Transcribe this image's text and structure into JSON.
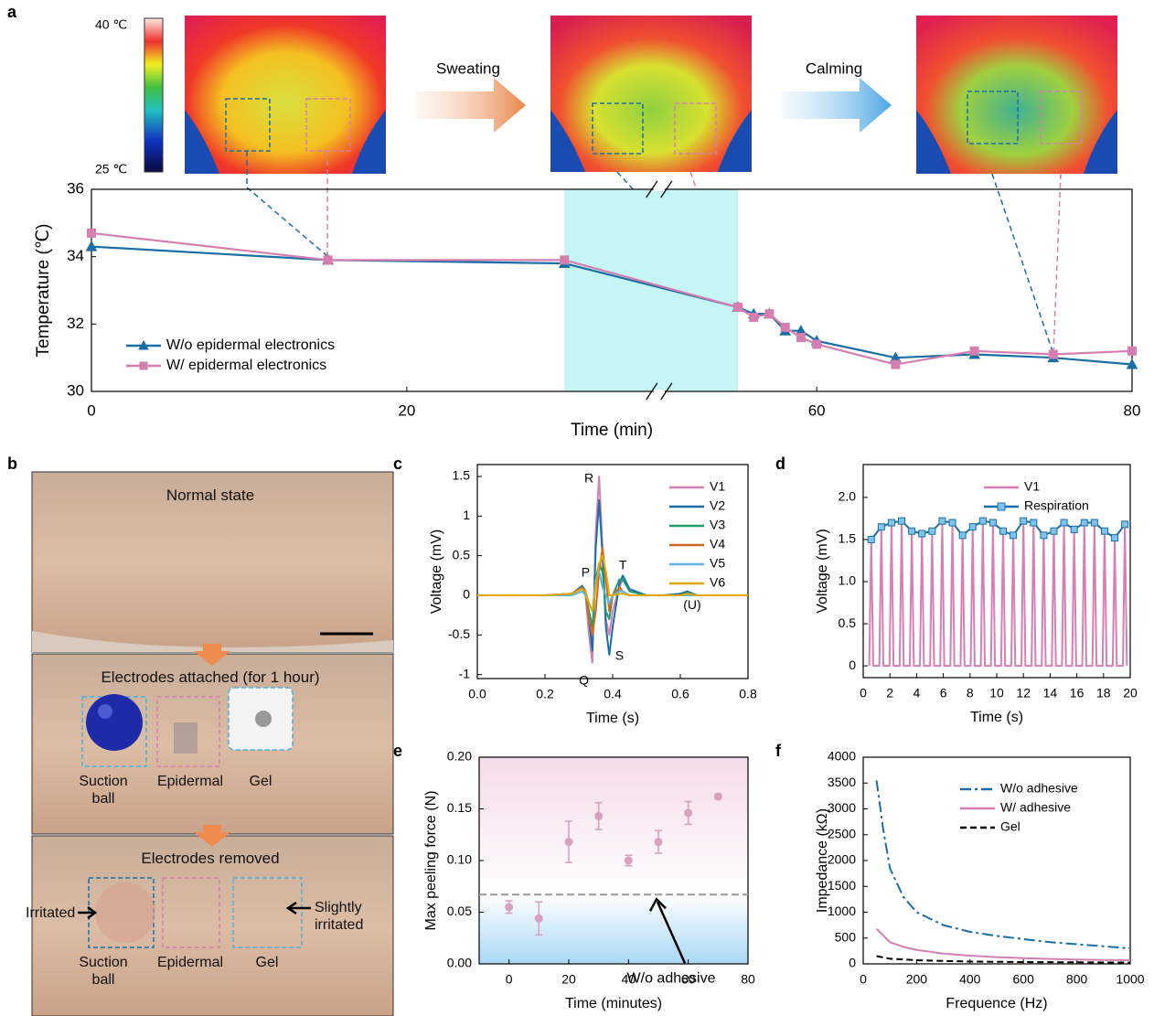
{
  "panel_labels": [
    "a",
    "b",
    "c",
    "d",
    "e",
    "f"
  ],
  "thermal": {
    "scale_max": "40 ℃",
    "scale_min": "25 ℃",
    "stages": [
      "Sweating",
      "Calming"
    ]
  },
  "photo": {
    "normal": "Normal state",
    "attached": {
      "title": "Electrodes attached (for 1 hour)",
      "electrodes": [
        "Suction ball",
        "Epidermal",
        "Gel"
      ]
    },
    "removed": {
      "title": "Electrodes removed",
      "electrodes": [
        "Suction ball",
        "Epidermal",
        "Gel"
      ],
      "notes": [
        "Irritated",
        "Slightly irritated"
      ]
    }
  },
  "chart_data": [
    {
      "type": "line",
      "x_label": "Time (min)",
      "y_label": "Temperature (℃)",
      "xlim": [
        0,
        80
      ],
      "xbreak": [
        36,
        50
      ],
      "xticks": [
        0,
        20,
        60,
        80
      ],
      "ylim": [
        30,
        36
      ],
      "yticks": [
        30,
        32,
        34,
        36
      ],
      "shaded_x": [
        30,
        55
      ],
      "shaded_color": "#c6f5f5",
      "legend": "lower left",
      "x": [
        0,
        15,
        30,
        55,
        56,
        57,
        58,
        59,
        60,
        65,
        70,
        75,
        80
      ],
      "series": [
        {
          "name": "W/o epidermal electronics",
          "color": "#1a6ea5",
          "marker": "triangle",
          "values": [
            34.3,
            33.9,
            33.8,
            32.5,
            32.3,
            32.3,
            31.8,
            31.8,
            31.5,
            31.0,
            31.1,
            31.0,
            30.8
          ]
        },
        {
          "name": "W/ epidermal electronics",
          "color": "#d47fb0",
          "marker": "square",
          "values": [
            34.7,
            33.9,
            33.9,
            32.5,
            32.2,
            32.3,
            31.9,
            31.6,
            31.4,
            30.8,
            31.2,
            31.1,
            31.2
          ]
        }
      ]
    },
    {
      "type": "line",
      "x_label": "Time (s)",
      "y_label": "Voltage (mV)",
      "xlim": [
        0,
        0.8
      ],
      "xticks": [
        {
          "value": 0,
          "label": "0.0"
        },
        0.2,
        0.4,
        0.6,
        0.8
      ],
      "ylim": [
        -1.05,
        1.65
      ],
      "yticks": [
        -1,
        -0.5,
        0,
        0.5,
        1,
        1.5
      ],
      "legend": "upper right",
      "x": [
        0,
        0.1,
        0.2,
        0.28,
        0.31,
        0.32,
        0.33,
        0.34,
        0.35,
        0.36,
        0.37,
        0.38,
        0.39,
        0.4,
        0.42,
        0.43,
        0.45,
        0.5,
        0.55,
        0.6,
        0.62,
        0.65,
        0.7,
        0.8
      ],
      "series": [
        {
          "name": "V1",
          "color": "#d67fb3",
          "values": [
            0,
            0,
            0,
            0.02,
            0.1,
            0,
            -0.5,
            -0.85,
            0.8,
            1.5,
            0.6,
            -0.3,
            -0.5,
            -0.2,
            0.1,
            0.2,
            0.05,
            0,
            0,
            0.02,
            0.05,
            0,
            0,
            0
          ]
        },
        {
          "name": "V2",
          "color": "#1b6fa8",
          "values": [
            0,
            0,
            0,
            0.02,
            0.12,
            0.05,
            -0.3,
            -0.7,
            0.6,
            1.2,
            0.5,
            -0.4,
            -0.75,
            -0.4,
            0.15,
            0.25,
            0.08,
            0,
            0,
            0.02,
            0.05,
            0,
            0,
            0
          ]
        },
        {
          "name": "V3",
          "color": "#1f9e6e",
          "values": [
            0,
            0,
            0,
            0.02,
            0.1,
            0,
            -0.2,
            -0.4,
            0.2,
            0.4,
            0.3,
            -0.2,
            -0.3,
            0,
            0.2,
            0.2,
            0.05,
            0,
            0,
            0,
            0.03,
            0,
            0,
            0
          ]
        },
        {
          "name": "V4",
          "color": "#d2691e",
          "values": [
            0,
            0,
            0,
            0.02,
            0.1,
            0,
            -0.3,
            -0.5,
            -0.2,
            0.3,
            0.6,
            0.2,
            -0.2,
            0,
            0.1,
            0.05,
            0,
            0,
            0,
            0,
            0,
            0,
            0,
            0
          ]
        },
        {
          "name": "V5",
          "color": "#5ab4e5",
          "values": [
            0,
            0,
            0,
            0,
            0.05,
            0,
            -0.1,
            -0.2,
            0.2,
            0.3,
            0.1,
            0,
            -0.1,
            0,
            0.05,
            0.05,
            0,
            0,
            0,
            0,
            0,
            0,
            0,
            0
          ]
        },
        {
          "name": "V6",
          "color": "#e0a800",
          "values": [
            0,
            0,
            0,
            0.02,
            0.08,
            0.05,
            -0.1,
            -0.2,
            0.1,
            0.4,
            0.5,
            0.3,
            0,
            0,
            0.02,
            0.02,
            0,
            0,
            0,
            0,
            0.02,
            0,
            0,
            0
          ]
        }
      ],
      "annotations": [
        {
          "text": "R",
          "x": 0.33,
          "y": 1.47
        },
        {
          "text": "P",
          "x": 0.32,
          "y": 0.28
        },
        {
          "text": "Q",
          "x": 0.315,
          "y": -1.08
        },
        {
          "text": "S",
          "x": 0.42,
          "y": -0.77
        },
        {
          "text": "T",
          "x": 0.43,
          "y": 0.37
        },
        {
          "text": "(U)",
          "x": 0.635,
          "y": -0.13
        }
      ]
    },
    {
      "type": "line",
      "x_label": "Time (s)",
      "y_label": "Voltage (mV)",
      "xlim": [
        0,
        20
      ],
      "xticks": [
        0,
        2,
        4,
        6,
        8,
        10,
        12,
        14,
        16,
        18,
        20
      ],
      "ylim": [
        -0.14,
        2.39
      ],
      "yticks": [
        0,
        0.5,
        {
          "value": 1,
          "label": "1.0"
        },
        1.5,
        {
          "value": 2,
          "label": "2.0"
        }
      ],
      "legend": "upper right",
      "series": [
        {
          "name": "V1",
          "color": "#d67fb3",
          "x": [
            0.45,
            0.6,
            0.75,
            1.21,
            1.36,
            1.51,
            1.97,
            2.12,
            2.27,
            2.73,
            2.88,
            3.03,
            3.49,
            3.64,
            3.79,
            4.25,
            4.4,
            4.55,
            5.01,
            5.16,
            5.31,
            5.77,
            5.92,
            6.07,
            6.53,
            6.68,
            6.83,
            7.29,
            7.44,
            7.59,
            8.05,
            8.2,
            8.35,
            8.81,
            8.96,
            9.11,
            9.57,
            9.72,
            9.87,
            10.33,
            10.48,
            10.63,
            11.09,
            11.24,
            11.39,
            11.85,
            12.0,
            12.15,
            12.61,
            12.76,
            12.91,
            13.37,
            13.52,
            13.67,
            14.13,
            14.28,
            14.43,
            14.89,
            15.04,
            15.19,
            15.65,
            15.8,
            15.95,
            16.41,
            16.56,
            16.71,
            17.17,
            17.32,
            17.47,
            17.93,
            18.08,
            18.23,
            18.69,
            18.84,
            18.99,
            19.45,
            19.6,
            19.75
          ],
          "values": [
            0,
            1.5,
            0,
            0,
            1.65,
            0,
            0,
            1.7,
            0,
            0,
            1.72,
            0,
            0,
            1.6,
            0,
            0,
            1.57,
            0,
            0,
            1.6,
            0,
            0,
            1.72,
            0,
            0,
            1.7,
            0,
            0,
            1.55,
            0,
            0,
            1.65,
            0,
            0,
            1.72,
            0,
            0,
            1.7,
            0,
            0,
            1.6,
            0,
            0,
            1.55,
            0,
            0,
            1.72,
            0,
            0,
            1.7,
            0,
            0,
            1.55,
            0,
            0,
            1.6,
            0,
            0,
            1.7,
            0,
            0,
            1.62,
            0,
            0,
            1.7,
            0,
            0,
            1.7,
            0,
            0,
            1.6,
            0,
            0,
            1.52,
            0,
            0,
            1.68,
            0
          ]
        },
        {
          "name": "Respiration",
          "color": "#1b6fa8",
          "marker": "square",
          "marker_fill": "#7ec4ec",
          "x": [
            0.6,
            1.36,
            2.12,
            2.88,
            3.64,
            4.4,
            5.16,
            5.92,
            6.68,
            7.44,
            8.2,
            8.96,
            9.72,
            10.48,
            11.24,
            12.0,
            12.76,
            13.52,
            14.28,
            15.04,
            15.8,
            16.56,
            17.32,
            18.08,
            18.84,
            19.6
          ],
          "values": [
            1.5,
            1.65,
            1.7,
            1.72,
            1.6,
            1.57,
            1.6,
            1.72,
            1.7,
            1.55,
            1.65,
            1.72,
            1.7,
            1.6,
            1.55,
            1.72,
            1.7,
            1.55,
            1.6,
            1.7,
            1.62,
            1.7,
            1.7,
            1.6,
            1.52,
            1.68
          ]
        }
      ]
    },
    {
      "type": "errorbar",
      "x_label": "Time (minutes)",
      "y_label": "Max peeling force (N)",
      "xlim": [
        -10,
        80
      ],
      "xticks": [
        0,
        20,
        40,
        60,
        80
      ],
      "ylim": [
        0,
        0.2
      ],
      "yticks": [
        {
          "value": 0,
          "label": "0.00"
        },
        0.05,
        {
          "value": 0.1,
          "label": "0.10"
        },
        0.15,
        {
          "value": 0.2,
          "label": "0.20"
        }
      ],
      "color": "#d9a0c2",
      "x": [
        0,
        10,
        20,
        30,
        40,
        50,
        60,
        70
      ],
      "values": [
        0.055,
        0.044,
        0.118,
        0.143,
        0.1,
        0.118,
        0.146,
        0.162
      ],
      "errors": [
        0.006,
        0.016,
        0.02,
        0.013,
        0.005,
        0.011,
        0.011,
        0.002
      ],
      "reference": {
        "value": 0.067,
        "label": "W/o adhesive",
        "color": "#999999"
      }
    },
    {
      "type": "line",
      "x_label": "Frequence (Hz)",
      "y_label": "Impedance (kΩ)",
      "xlim": [
        0,
        1000
      ],
      "xticks": [
        0,
        200,
        400,
        600,
        800,
        1000
      ],
      "ylim": [
        0,
        4000
      ],
      "yticks": [
        0,
        500,
        1000,
        1500,
        2000,
        2500,
        3000,
        3500,
        4000
      ],
      "legend": "upper right",
      "series": [
        {
          "name": "W/o adhesive",
          "color": "#1a6ea5",
          "dash": "dashdot",
          "x": [
            50,
            75,
            100,
            150,
            200,
            300,
            400,
            500,
            600,
            700,
            800,
            900,
            1000
          ],
          "values": [
            3550,
            2600,
            1850,
            1300,
            1000,
            750,
            620,
            540,
            480,
            420,
            380,
            340,
            300
          ]
        },
        {
          "name": "W/ adhesive",
          "color": "#d47fb0",
          "x": [
            50,
            100,
            150,
            200,
            300,
            400,
            500,
            600,
            700,
            800,
            900,
            1000
          ],
          "values": [
            680,
            420,
            330,
            270,
            200,
            160,
            130,
            110,
            95,
            85,
            75,
            70
          ]
        },
        {
          "name": "Gel",
          "color": "#000000",
          "dash": "dash",
          "x": [
            50,
            100,
            200,
            400,
            600,
            800,
            1000
          ],
          "values": [
            150,
            100,
            70,
            45,
            35,
            30,
            25
          ]
        }
      ]
    }
  ]
}
